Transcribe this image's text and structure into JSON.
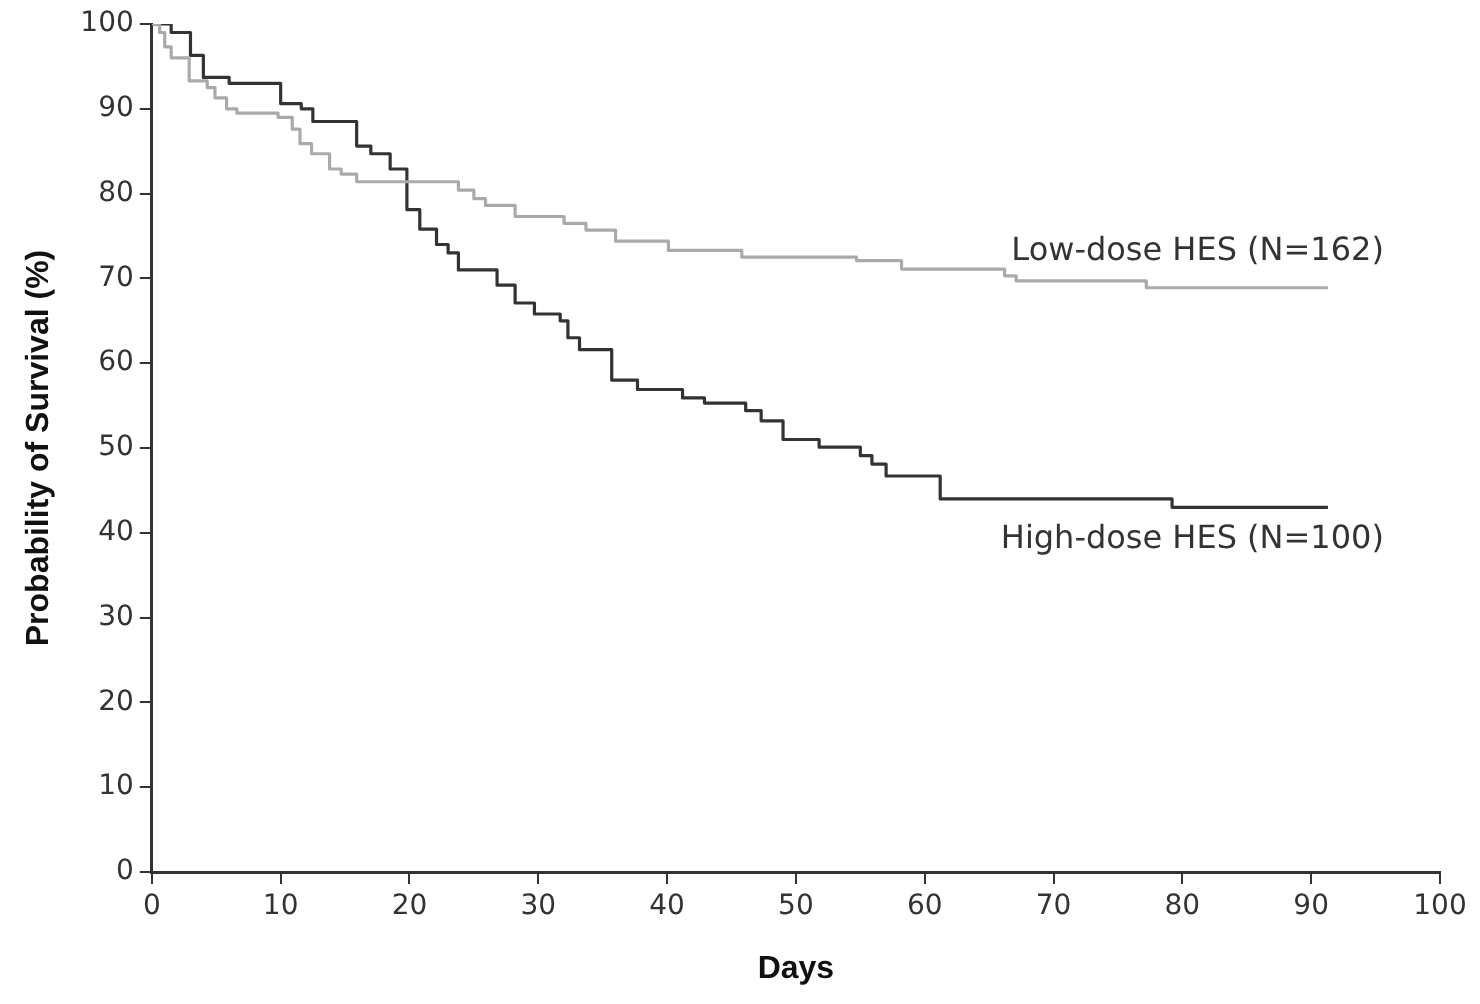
{
  "chart_data": {
    "type": "step",
    "xlabel": "Days",
    "ylabel": "Probability of Survival (%)",
    "xlim": [
      0,
      100
    ],
    "xticks": [
      0,
      10,
      20,
      30,
      40,
      50,
      60,
      70,
      80,
      90,
      100
    ],
    "ylim": [
      0,
      100
    ],
    "yticks": [
      0,
      10,
      20,
      30,
      40,
      50,
      60,
      70,
      80,
      90,
      100
    ],
    "grid": false,
    "legend": false,
    "marker": "none",
    "line_style": "solid",
    "series": [
      {
        "name": "Low-dose HES (N=162)",
        "color": "#aaaaaa",
        "x": [
          0,
          0.6,
          1,
          1.5,
          2.9,
          4.3,
          4.9,
          5.8,
          6.6,
          9.8,
          10.9,
          11.5,
          12.4,
          13.8,
          14.7,
          15.9,
          23.8,
          25,
          25.9,
          28.2,
          32,
          33.7,
          36,
          40.1,
          45.8,
          54.7,
          58.2,
          66.2,
          67.1,
          77.2,
          91.3
        ],
        "values": [
          100,
          99,
          97.3,
          96,
          93.3,
          92.5,
          91.3,
          90,
          89.5,
          89,
          87.6,
          85.9,
          84.7,
          82.9,
          82.3,
          81.4,
          80.4,
          79.4,
          78.6,
          77.3,
          76.5,
          75.7,
          74.4,
          73.3,
          72.5,
          72.1,
          71.1,
          70.3,
          69.7,
          68.9,
          68.9
        ]
      },
      {
        "name": "High-dose HES (N=100)",
        "color": "#333333",
        "x": [
          0,
          1.5,
          3,
          4,
          6,
          10,
          11.6,
          12.5,
          15.9,
          17,
          18.5,
          19.8,
          20.8,
          22.1,
          23,
          23.8,
          26.8,
          28.2,
          29.7,
          31.7,
          32.3,
          33.2,
          35.7,
          37.7,
          41.2,
          42.9,
          46.1,
          47.3,
          49,
          51.8,
          55,
          55.9,
          57,
          61.2,
          79.2,
          91.3
        ],
        "values": [
          100,
          99,
          96.3,
          93.7,
          93,
          90.6,
          90,
          88.5,
          85.6,
          84.7,
          82.9,
          78.1,
          75.8,
          74,
          73,
          71,
          69.2,
          67.1,
          65.8,
          65,
          63,
          61.6,
          58,
          56.9,
          55.9,
          55.3,
          54.4,
          53.2,
          51,
          50.1,
          49.1,
          48.1,
          46.7,
          44,
          43,
          43
        ]
      }
    ]
  }
}
